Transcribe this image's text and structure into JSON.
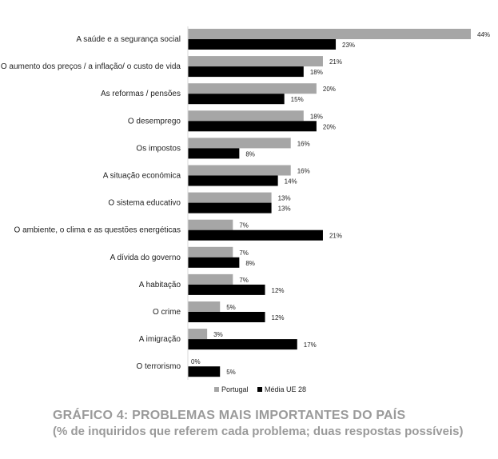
{
  "chart_data": {
    "type": "bar",
    "orientation": "horizontal",
    "categories": [
      "A saúde e a segurança social",
      "O aumento dos preços / a inflação/ o custo de vida",
      "As reformas / pensões",
      "O desemprego",
      "Os impostos",
      "A situação económica",
      "O sistema educativo",
      "O ambiente, o clima e as questões energéticas",
      "A dívida do governo",
      "A habitação",
      "O crime",
      "A imigração",
      "O terrorismo"
    ],
    "series": [
      {
        "name": "Portugal",
        "values": [
          44,
          21,
          20,
          18,
          16,
          16,
          13,
          7,
          7,
          7,
          5,
          3,
          0
        ],
        "color": "#a6a6a6"
      },
      {
        "name": "Média UE 28",
        "values": [
          23,
          18,
          15,
          20,
          8,
          14,
          13,
          21,
          8,
          12,
          12,
          17,
          5
        ],
        "color": "#000000"
      }
    ],
    "value_suffix": "%",
    "xlim": [
      0,
      44
    ],
    "grid": false,
    "legend_position": "bottom"
  },
  "caption": {
    "title": "GRÁFICO  4: PROBLEMAS MAIS IMPORTANTES DO PAÍS",
    "subtitle": "(% de inquiridos que referem cada problema; duas respostas possíveis)"
  }
}
